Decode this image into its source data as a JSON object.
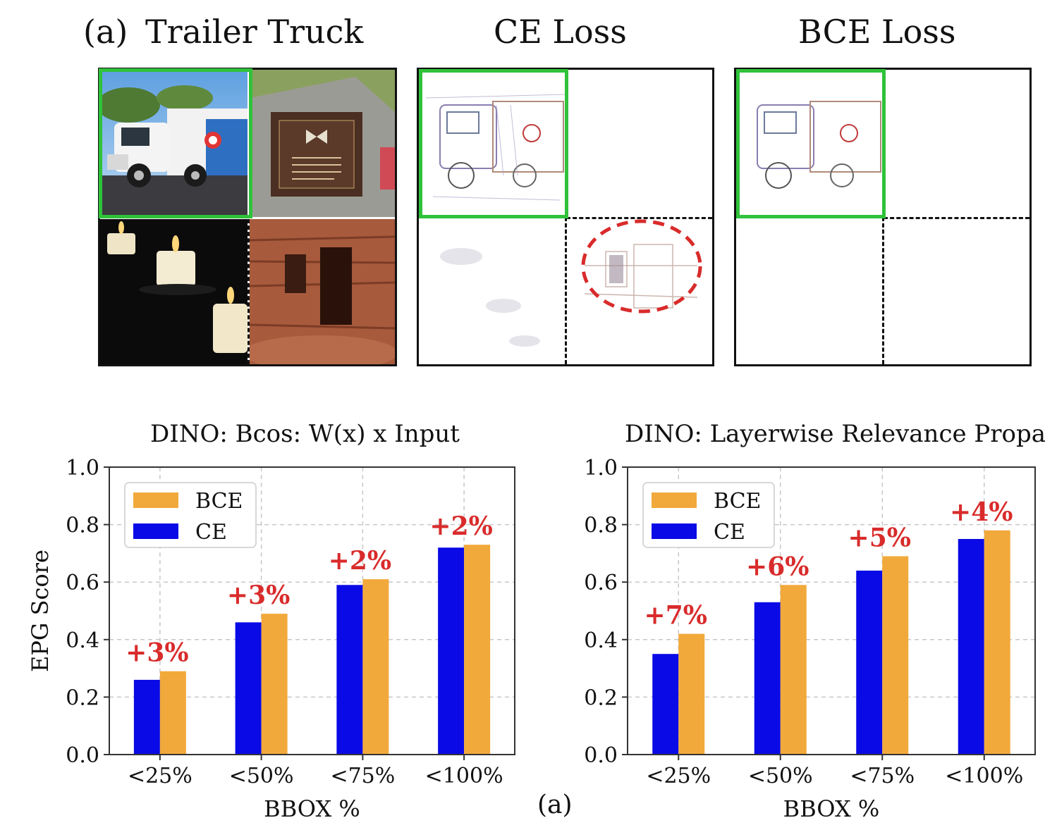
{
  "figure": {
    "panel_a_label": "(a)",
    "panel_titles": [
      "Trailer Truck",
      "CE Loss",
      "BCE Loss"
    ],
    "bottom_caption": "(a)"
  },
  "colors": {
    "bce": "#f2a93b",
    "ce": "#0a0ae6",
    "highlight_box": "#2fc23a",
    "annotation": "#d92b2b",
    "grid": "#c8c8c8"
  },
  "chart_data": [
    {
      "type": "bar",
      "title": "DINO: Bcos: W(x) x Input",
      "xlabel": "BBOX %",
      "ylabel": "EPG Score",
      "ylim": [
        0,
        1.0
      ],
      "yticks": [
        "0.0",
        "0.2",
        "0.4",
        "0.6",
        "0.8",
        "1.0"
      ],
      "categories": [
        "<25%",
        "<50%",
        "<75%",
        "<100%"
      ],
      "series": [
        {
          "name": "CE",
          "values": [
            0.26,
            0.46,
            0.59,
            0.72
          ]
        },
        {
          "name": "BCE",
          "values": [
            0.29,
            0.49,
            0.61,
            0.73
          ]
        }
      ],
      "annotations": [
        "+3%",
        "+3%",
        "+2%",
        "+2%"
      ],
      "legend": "top-left",
      "grid": true
    },
    {
      "type": "bar",
      "title": "DINO: Layerwise Relevance Propagation",
      "xlabel": "BBOX %",
      "ylabel": "",
      "ylim": [
        0,
        1.0
      ],
      "yticks": [
        "0.0",
        "0.2",
        "0.4",
        "0.6",
        "0.8",
        "1.0"
      ],
      "categories": [
        "<25%",
        "<50%",
        "<75%",
        "<100%"
      ],
      "series": [
        {
          "name": "CE",
          "values": [
            0.35,
            0.53,
            0.64,
            0.75
          ]
        },
        {
          "name": "BCE",
          "values": [
            0.42,
            0.59,
            0.69,
            0.78
          ]
        }
      ],
      "annotations": [
        "+7%",
        "+6%",
        "+5%",
        "+4%"
      ],
      "legend": "top-left",
      "grid": true
    }
  ]
}
